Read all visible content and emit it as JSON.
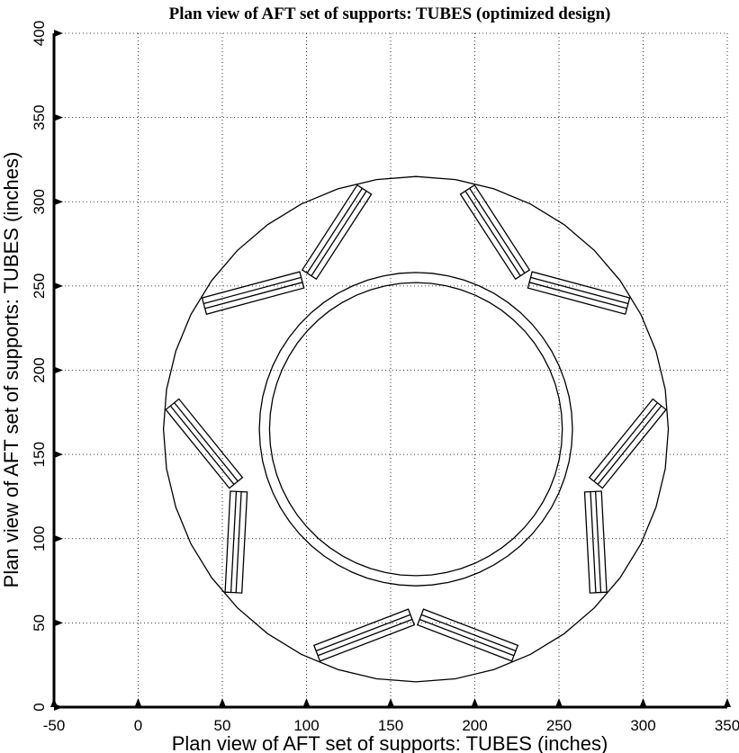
{
  "chart_data": {
    "type": "plan-view-plot",
    "title": "Plan view of AFT set of supports: TUBES (optimized design)",
    "xlabel": "Plan view of AFT set of supports: TUBES (inches)",
    "ylabel": "Plan view of AFT set of supports: TUBES (inches)",
    "xlim": [
      -50,
      350
    ],
    "ylim": [
      0,
      400
    ],
    "xticks": [
      -50,
      0,
      50,
      100,
      150,
      200,
      250,
      300,
      350
    ],
    "yticks": [
      0,
      50,
      100,
      150,
      200,
      250,
      300,
      350,
      400
    ],
    "grid": true,
    "center": [
      165,
      165
    ],
    "outer_circle_radius": 150,
    "ring_outer_radius": 93,
    "ring_inner_radius": 87,
    "support_count": 5,
    "support_angle_offset_deg": 0,
    "supports_per_pair": 2,
    "tube_length": 60,
    "tube_width": 10,
    "tube_angle_from_radial_deg": 33,
    "tube_tangential_offset": 47,
    "tube_radial_center": 117
  }
}
